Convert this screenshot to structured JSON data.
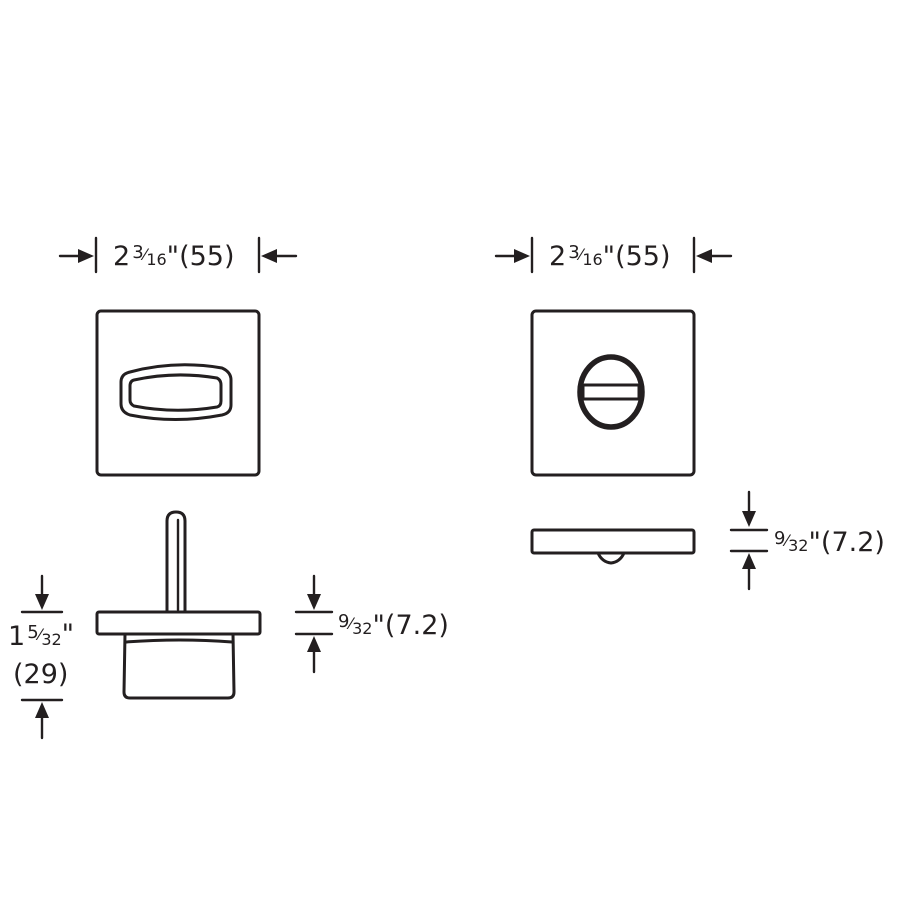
{
  "dimensions": {
    "left_width": {
      "whole": "2",
      "num": "3",
      "den": "16",
      "unit": "\"",
      "metric": "(55)"
    },
    "right_width": {
      "whole": "2",
      "num": "3",
      "den": "16",
      "unit": "\"",
      "metric": "(55)"
    },
    "left_thickness": {
      "num": "9",
      "den": "32",
      "unit": "\"",
      "metric": "(7.2)"
    },
    "right_thickness": {
      "num": "9",
      "den": "32",
      "unit": "\"",
      "metric": "(7.2)"
    },
    "left_depth": {
      "whole": "1",
      "num": "5",
      "den": "32",
      "unit": "\"",
      "metric": "(29)"
    }
  },
  "colors": {
    "line": "#231f20",
    "background": "#ffffff"
  },
  "views": [
    "thumbturn-front-view",
    "thumbturn-side-view",
    "release-front-view",
    "release-side-view"
  ]
}
